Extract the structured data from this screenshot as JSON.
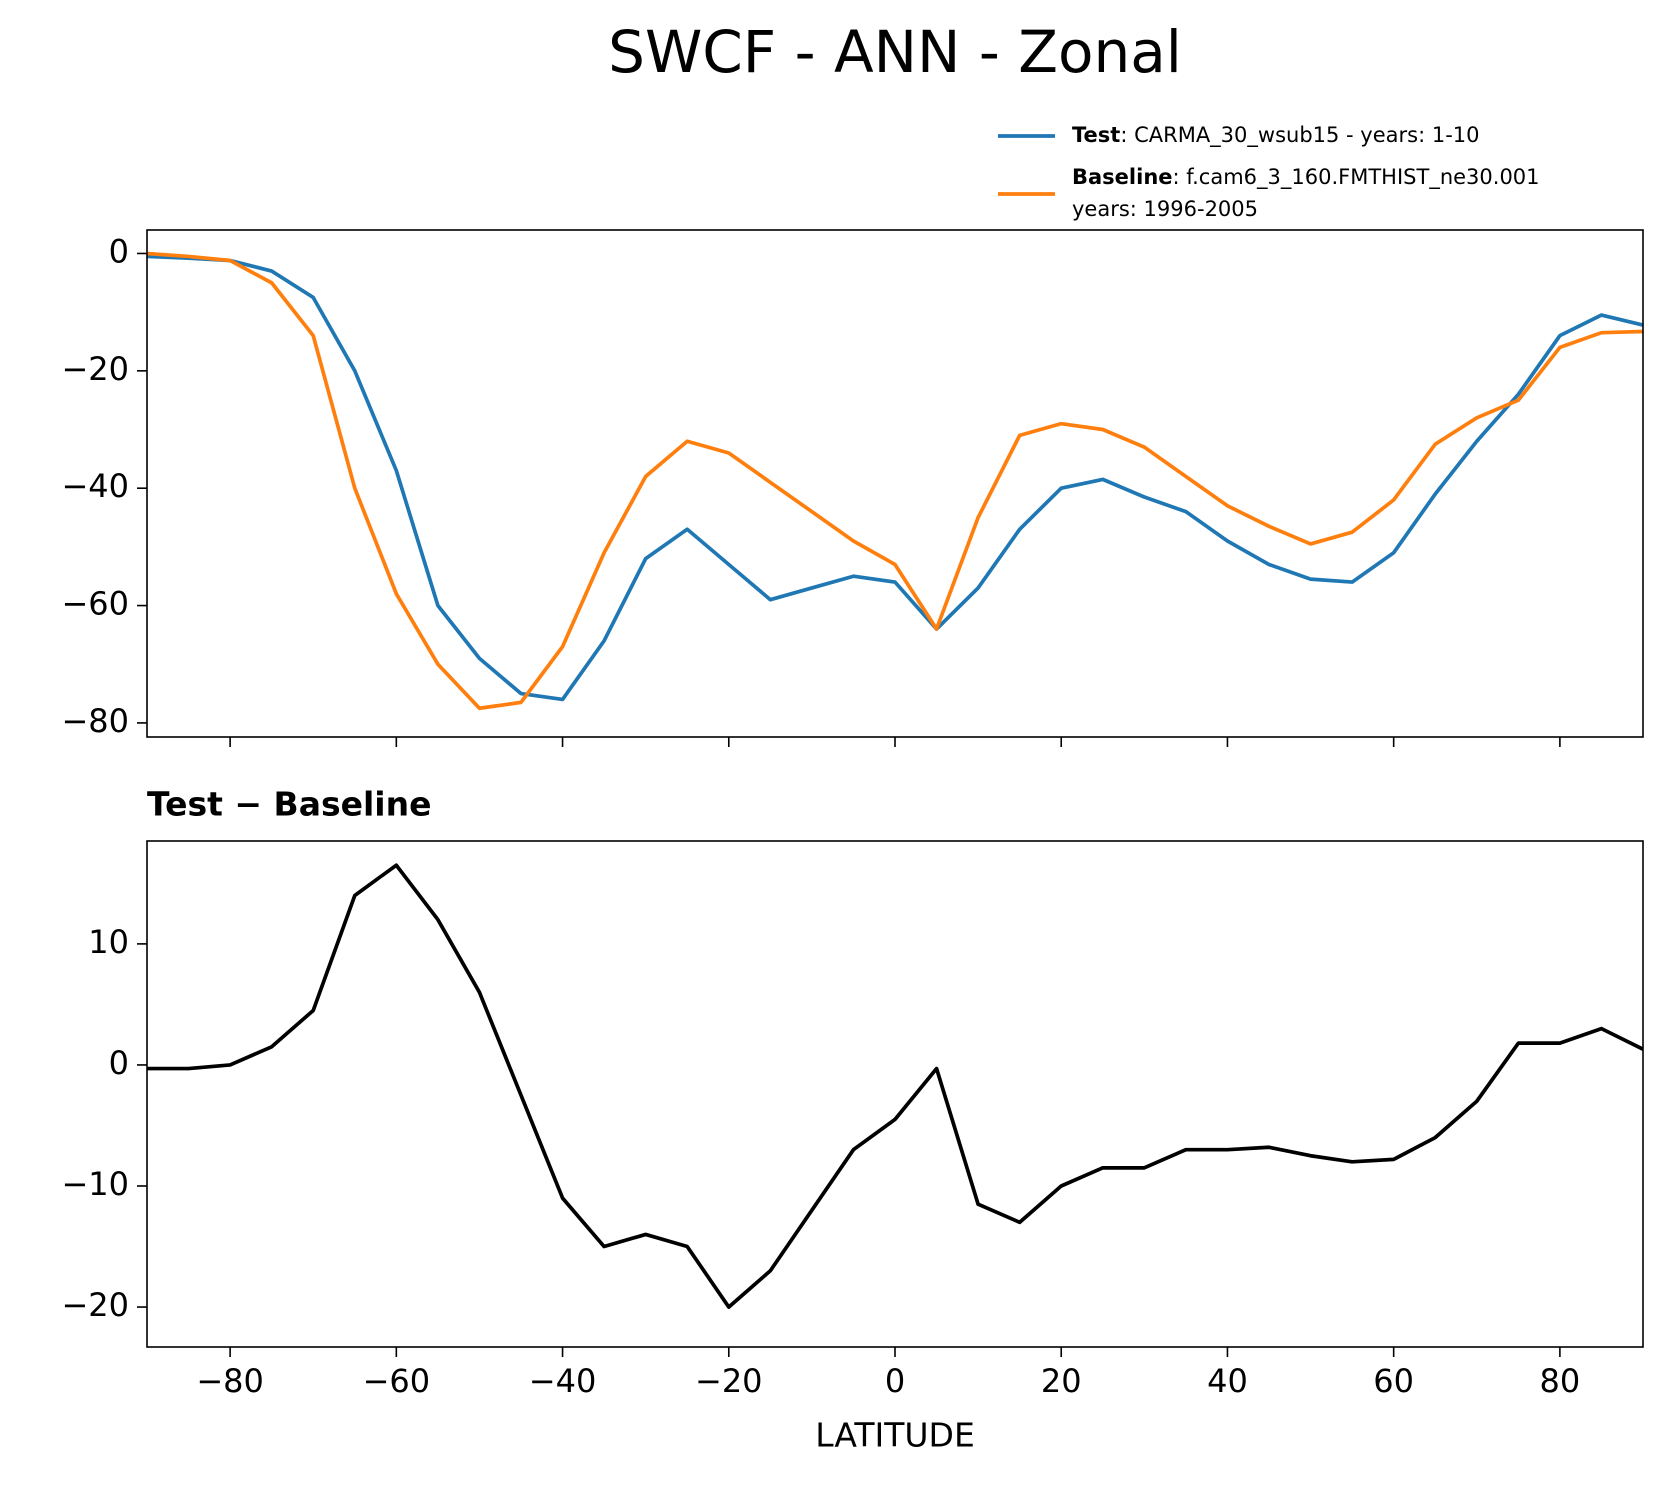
{
  "suptitle": "SWCF - ANN - Zonal",
  "chart_data": [
    {
      "type": "line",
      "x": [
        -90,
        -85,
        -80,
        -75,
        -70,
        -65,
        -60,
        -55,
        -50,
        -45,
        -40,
        -35,
        -30,
        -25,
        -20,
        -15,
        -10,
        -5,
        0,
        5,
        10,
        15,
        20,
        25,
        30,
        35,
        40,
        45,
        50,
        55,
        60,
        65,
        70,
        75,
        80,
        85,
        90
      ],
      "series": [
        {
          "name": "Test",
          "label": [
            ": CARMA_30_wsub15 - years: 1-10"
          ],
          "color": "#1f77b4",
          "values": [
            -0.5,
            -0.8,
            -1.2,
            -3,
            -7.5,
            -20,
            -37,
            -60,
            -69,
            -75,
            -76,
            -66,
            -52,
            -47,
            -53,
            -59,
            -57,
            -55,
            -56,
            -64,
            -57,
            -47,
            -40,
            -38.5,
            -41.5,
            -44,
            -49,
            -53,
            -55.5,
            -56,
            -51,
            -41,
            -32,
            -24,
            -14,
            -10.5,
            -12.2
          ]
        },
        {
          "name": "Baseline",
          "label": [
            ": f.cam6_3_160.FMTHIST_ne30.001",
            "years: 1996-2005"
          ],
          "color": "#ff7f0e",
          "values": [
            0,
            -0.5,
            -1.2,
            -5,
            -14,
            -40,
            -58,
            -70,
            -77.5,
            -76.5,
            -67,
            -51,
            -38,
            -32,
            -34,
            -39,
            -44,
            -49,
            -53,
            -64,
            -45,
            -31,
            -29,
            -30,
            -33,
            -38,
            -43,
            -46.5,
            -49.5,
            -47.5,
            -42,
            -32.5,
            -28,
            -25,
            -16,
            -13.5,
            -13.3
          ]
        }
      ],
      "xlim": [
        -90,
        90
      ],
      "xticks": [
        {
          "value": -80,
          "label": "−80"
        },
        {
          "value": -60,
          "label": "−60"
        },
        {
          "value": -40,
          "label": "−40"
        },
        {
          "value": -20,
          "label": "−20"
        },
        0,
        20,
        40,
        60,
        80
      ],
      "ylim": [
        -82.4,
        4
      ],
      "yticks": [
        {
          "value": -80,
          "label": "−80"
        },
        {
          "value": -60,
          "label": "−60"
        },
        {
          "value": -40,
          "label": "−40"
        },
        {
          "value": -20,
          "label": "−20"
        },
        0
      ],
      "legend": "upper right"
    },
    {
      "type": "line",
      "title": "Test − Baseline",
      "xlabel": "LATITUDE",
      "x": [
        -90,
        -85,
        -80,
        -75,
        -70,
        -65,
        -60,
        -55,
        -50,
        -45,
        -40,
        -35,
        -30,
        -25,
        -20,
        -15,
        -10,
        -5,
        0,
        5,
        10,
        15,
        20,
        25,
        30,
        35,
        40,
        45,
        50,
        55,
        60,
        65,
        70,
        75,
        80,
        85,
        90
      ],
      "series": [
        {
          "color": "#000000",
          "values": [
            -0.3,
            -0.3,
            0,
            1.5,
            4.5,
            14,
            16.5,
            12,
            6,
            -2.5,
            -11,
            -15,
            -14,
            -15,
            -20,
            -17,
            -12,
            -7,
            -4.5,
            -0.3,
            -11.5,
            -13,
            -10,
            -8.5,
            -8.5,
            -7,
            -7,
            -6.8,
            -7.5,
            -8,
            -7.8,
            -6,
            -3,
            1.8,
            1.8,
            3,
            1.3
          ]
        }
      ],
      "xlim": [
        -90,
        90
      ],
      "xticks": [
        {
          "value": -80,
          "label": "−80"
        },
        {
          "value": -60,
          "label": "−60"
        },
        {
          "value": -40,
          "label": "−40"
        },
        {
          "value": -20,
          "label": "−20"
        },
        0,
        20,
        40,
        60,
        80
      ],
      "ylim": [
        -23.3,
        18.5
      ],
      "yticks": [
        {
          "value": -20,
          "label": "−20"
        },
        {
          "value": -10,
          "label": "−10"
        },
        0,
        10
      ]
    }
  ]
}
